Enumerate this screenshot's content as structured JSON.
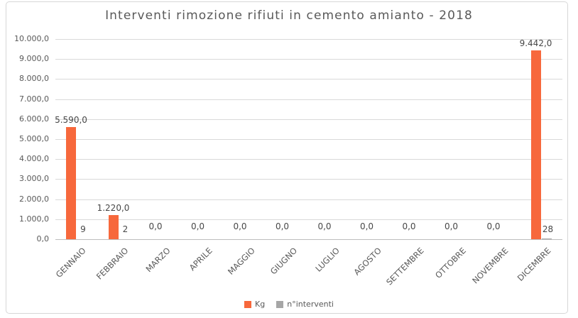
{
  "chart": {
    "title": "Interventi rimozione rifiuti in cemento amianto - 2018"
  },
  "chart_data": {
    "type": "bar",
    "title": "Interventi rimozione rifiuti in cemento amianto - 2018",
    "categories": [
      "GENNAIO",
      "FEBBRAIO",
      "MARZO",
      "APRILE",
      "MAGGIO",
      "GIUGNO",
      "LUGLIO",
      "AGOSTO",
      "SETTEMBRE",
      "OTTOBRE",
      "NOVEMBRE",
      "DICEMBRE"
    ],
    "series": [
      {
        "name": "Kg",
        "color": "#f7683c",
        "values": [
          5590,
          1220,
          0,
          0,
          0,
          0,
          0,
          0,
          0,
          0,
          0,
          9442
        ],
        "labels": [
          "5.590,0",
          "1.220,0",
          "0,0",
          "0,0",
          "0,0",
          "0,0",
          "0,0",
          "0,0",
          "0,0",
          "0,0",
          "0,0",
          "9.442,0"
        ]
      },
      {
        "name": "n°interventi",
        "color": "#a6a6a6",
        "values": [
          9,
          2,
          null,
          null,
          null,
          null,
          null,
          null,
          null,
          null,
          null,
          28
        ],
        "labels": [
          "9",
          "2",
          "",
          "",
          "",
          "",
          "",
          "",
          "",
          "",
          "",
          "28"
        ]
      }
    ],
    "ylabel": "",
    "xlabel": "",
    "ylim": [
      0,
      10000
    ],
    "ytick_step": 1000,
    "ytick_labels": [
      "0,0",
      "1.000,0",
      "2.000,0",
      "3.000,0",
      "4.000,0",
      "5.000,0",
      "6.000,0",
      "7.000,0",
      "8.000,0",
      "9.000,0",
      "10.000,0"
    ],
    "grid": "horizontal",
    "legend_position": "bottom",
    "legend": [
      {
        "label": "Kg",
        "color": "#f7683c"
      },
      {
        "label": "n°interventi",
        "color": "#a6a6a6"
      }
    ]
  },
  "colors": {
    "title_text": "#595959",
    "axis_text": "#595959",
    "data_label_text": "#474747",
    "gridline": "#d9d9d9",
    "axis_line": "#bdbdbd",
    "frame_border": "#d7d7d7",
    "background": "#ffffff"
  }
}
